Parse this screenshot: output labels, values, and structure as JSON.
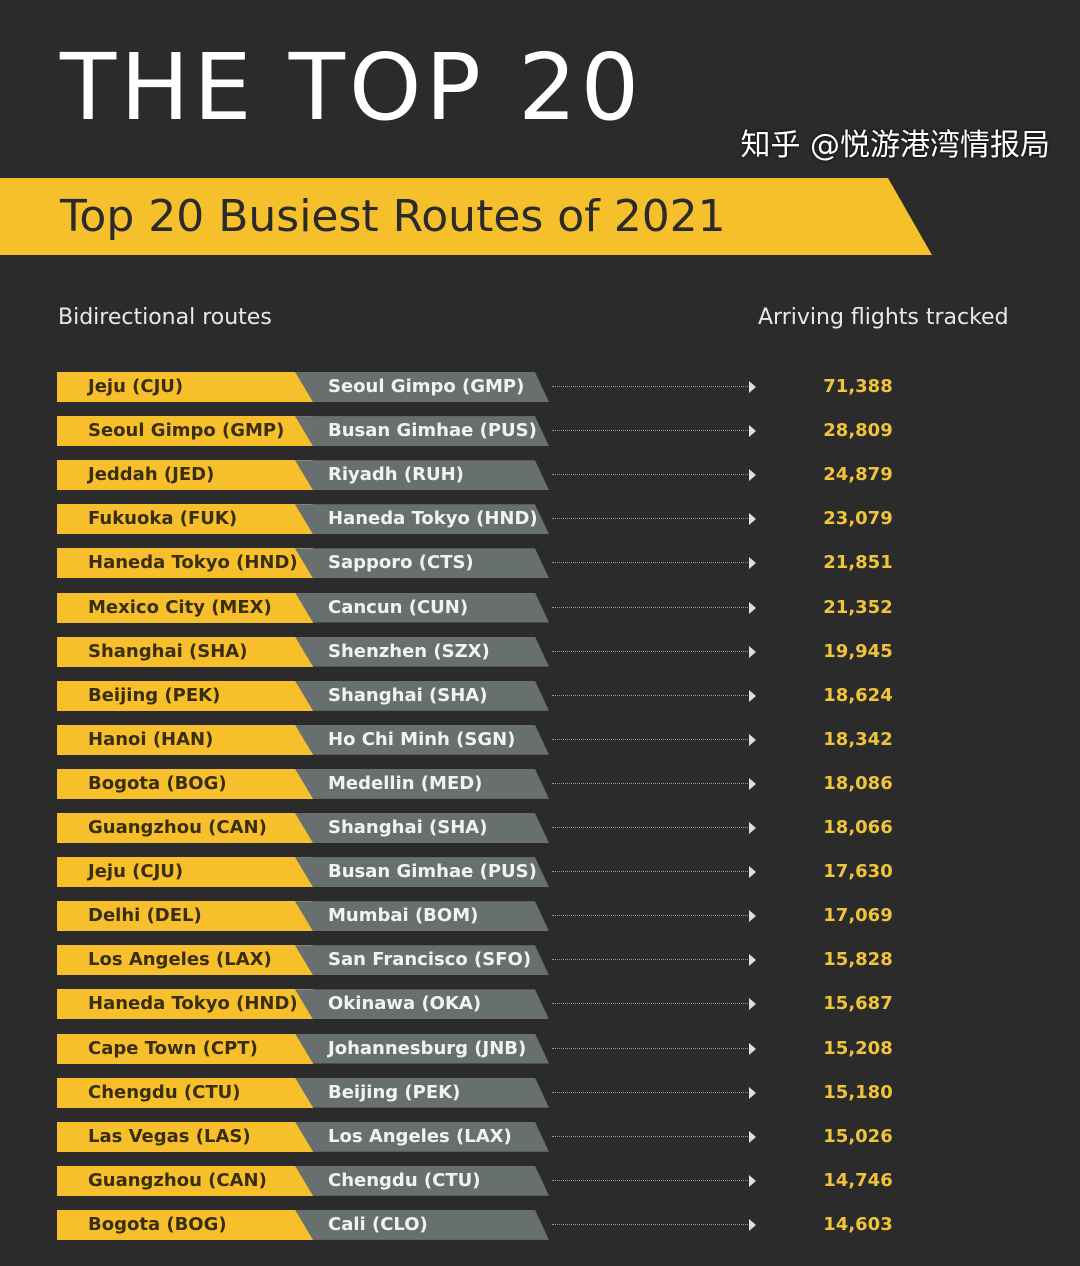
{
  "title": "THE TOP 20",
  "subtitle": "Top 20 Busiest Routes of 2021",
  "col_left": "Bidirectional routes",
  "col_right": "Arriving flights tracked",
  "colors": {
    "yellow": "#f6bf2b",
    "gray": "#68706f",
    "background": "#2b2b2b",
    "value": "#f0c43a"
  },
  "routes": [
    {
      "from": "Jeju (CJU)",
      "to": "Seoul Gimpo (GMP)",
      "flights": "71,388"
    },
    {
      "from": "Seoul Gimpo (GMP)",
      "to": "Busan Gimhae (PUS)",
      "flights": "28,809"
    },
    {
      "from": "Jeddah (JED)",
      "to": "Riyadh (RUH)",
      "flights": "24,879"
    },
    {
      "from": "Fukuoka (FUK)",
      "to": "Haneda Tokyo (HND)",
      "flights": "23,079"
    },
    {
      "from": "Haneda Tokyo (HND)",
      "to": "Sapporo (CTS)",
      "flights": "21,851"
    },
    {
      "from": "Mexico City (MEX)",
      "to": "Cancun (CUN)",
      "flights": "21,352"
    },
    {
      "from": "Shanghai (SHA)",
      "to": "Shenzhen (SZX)",
      "flights": "19,945"
    },
    {
      "from": "Beijing (PEK)",
      "to": "Shanghai (SHA)",
      "flights": "18,624"
    },
    {
      "from": "Hanoi (HAN)",
      "to": "Ho Chi Minh (SGN)",
      "flights": "18,342"
    },
    {
      "from": "Bogota (BOG)",
      "to": "Medellin (MED)",
      "flights": "18,086"
    },
    {
      "from": "Guangzhou (CAN)",
      "to": "Shanghai (SHA)",
      "flights": "18,066"
    },
    {
      "from": "Jeju (CJU)",
      "to": "Busan Gimhae (PUS)",
      "flights": "17,630"
    },
    {
      "from": "Delhi (DEL)",
      "to": "Mumbai (BOM)",
      "flights": "17,069"
    },
    {
      "from": "Los Angeles (LAX)",
      "to": "San Francisco (SFO)",
      "flights": "15,828"
    },
    {
      "from": "Haneda Tokyo (HND)",
      "to": "Okinawa (OKA)",
      "flights": "15,687"
    },
    {
      "from": "Cape Town (CPT)",
      "to": "Johannesburg (JNB)",
      "flights": "15,208"
    },
    {
      "from": "Chengdu (CTU)",
      "to": "Beijing (PEK)",
      "flights": "15,180"
    },
    {
      "from": "Las Vegas (LAS)",
      "to": "Los Angeles (LAX)",
      "flights": "15,026"
    },
    {
      "from": "Guangzhou (CAN)",
      "to": "Chengdu (CTU)",
      "flights": "14,746"
    },
    {
      "from": "Bogota (BOG)",
      "to": "Cali (CLO)",
      "flights": "14,603"
    }
  ],
  "watermark": "知乎 @悦游港湾情报局"
}
